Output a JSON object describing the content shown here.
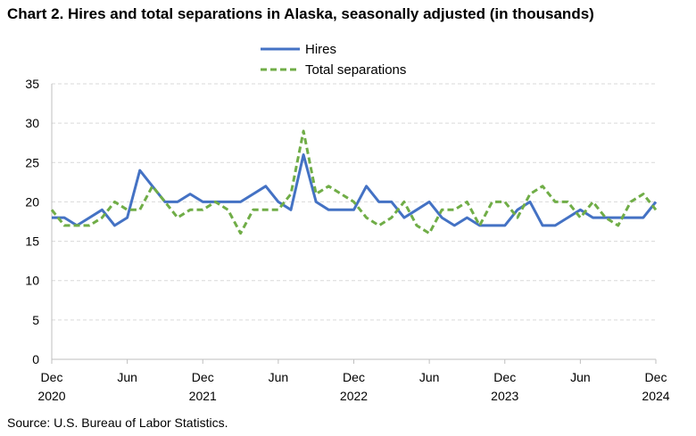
{
  "chart_data": {
    "type": "line",
    "title": "Chart 2. Hires and total separations in Alaska, seasonally adjusted (in thousands)",
    "source": "Source: U.S. Bureau of Labor Statistics.",
    "ylim": [
      0,
      35
    ],
    "yticks": [
      "0",
      "5",
      "10",
      "15",
      "20",
      "25",
      "30",
      "35"
    ],
    "xtick_labels": [
      {
        "month": "Dec",
        "year": "2020",
        "index": 0
      },
      {
        "month": "Jun",
        "year": "",
        "index": 6
      },
      {
        "month": "Dec",
        "year": "2021",
        "index": 12
      },
      {
        "month": "Jun",
        "year": "",
        "index": 18
      },
      {
        "month": "Dec",
        "year": "2022",
        "index": 24
      },
      {
        "month": "Jun",
        "year": "",
        "index": 30
      },
      {
        "month": "Dec",
        "year": "2023",
        "index": 36
      },
      {
        "month": "Jun",
        "year": "",
        "index": 42
      },
      {
        "month": "Dec",
        "year": "2024",
        "index": 48
      }
    ],
    "grid": "horizontal",
    "legend_position": "top-center",
    "series": [
      {
        "name": "Hires",
        "color": "#4472c4",
        "dash": "solid",
        "values": [
          18,
          18,
          17,
          18,
          19,
          17,
          18,
          24,
          22,
          20,
          20,
          21,
          20,
          20,
          20,
          20,
          21,
          22,
          20,
          19,
          26,
          20,
          19,
          19,
          19,
          22,
          20,
          20,
          18,
          19,
          20,
          18,
          17,
          18,
          17,
          17,
          17,
          19,
          20,
          17,
          17,
          18,
          19,
          18,
          18,
          18,
          18,
          18,
          20
        ]
      },
      {
        "name": "Total separations",
        "color": "#70ad47",
        "dash": "dashed",
        "values": [
          19,
          17,
          17,
          17,
          18,
          20,
          19,
          19,
          22,
          20,
          18,
          19,
          19,
          20,
          19,
          16,
          19,
          19,
          19,
          21,
          29,
          21,
          22,
          21,
          20,
          18,
          17,
          18,
          20,
          17,
          16,
          19,
          19,
          20,
          17,
          20,
          20,
          18,
          21,
          22,
          20,
          20,
          18,
          20,
          18,
          17,
          20,
          21,
          19
        ]
      }
    ]
  }
}
